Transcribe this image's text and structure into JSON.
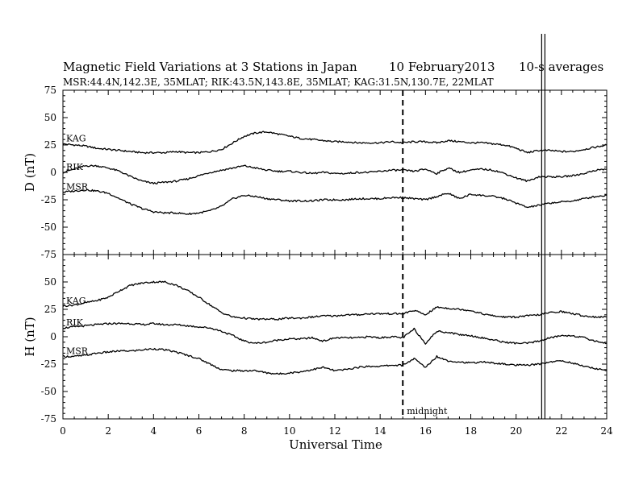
{
  "header": {
    "title": "Magnetic Field Variations at 3 Stations in Japan",
    "date": "10 February2013",
    "averaging": "10-s averages",
    "stations_line": "MSR:44.4N,142.3E, 35MLAT;  RIK:43.5N,143.8E, 35MLAT;  KAG:31.5N,130.7E, 22MLAT"
  },
  "colors": {
    "trace": "#000000",
    "axis": "#000000",
    "background": "#ffffff"
  },
  "chart_data": [
    {
      "type": "line",
      "panel": "D",
      "ylabel": "D (nT)",
      "xlabel": "Universal Time",
      "xlim": [
        0,
        24
      ],
      "ylim": [
        -75,
        75
      ],
      "xticks": [
        0,
        2,
        4,
        6,
        8,
        10,
        12,
        14,
        16,
        18,
        20,
        22,
        24
      ],
      "yticks": [
        75,
        50,
        25,
        0,
        -25,
        -50,
        -75
      ],
      "annotation": "midnight",
      "midnight_x": 15,
      "marker_x": 21.2,
      "grid": false,
      "x": [
        0,
        0.5,
        1,
        1.5,
        2,
        2.5,
        3,
        3.5,
        4,
        4.5,
        5,
        5.5,
        6,
        6.5,
        7,
        7.5,
        8,
        8.5,
        9,
        9.5,
        10,
        10.5,
        11,
        11.5,
        12,
        12.5,
        13,
        13.5,
        14,
        14.5,
        15,
        15.5,
        16,
        16.5,
        17,
        17.5,
        18,
        18.5,
        19,
        19.5,
        20,
        20.5,
        21,
        21.5,
        22,
        22.5,
        23,
        23.5,
        24
      ],
      "series": [
        {
          "name": "KAG",
          "values": [
            26,
            25,
            24,
            22,
            21,
            20,
            19,
            18,
            18,
            18,
            19,
            18,
            18,
            19,
            21,
            27,
            33,
            36,
            37,
            35,
            33,
            31,
            30,
            29,
            28,
            28,
            27,
            27,
            27,
            28,
            27,
            28,
            28,
            27,
            29,
            28,
            27,
            27,
            26,
            25,
            22,
            18,
            20,
            20,
            19,
            19,
            21,
            23,
            25
          ]
        },
        {
          "name": "RIK",
          "values": [
            0,
            3,
            6,
            6,
            4,
            1,
            -4,
            -8,
            -10,
            -9,
            -8,
            -6,
            -3,
            0,
            2,
            4,
            6,
            4,
            2,
            1,
            1,
            0,
            -1,
            0,
            -1,
            -1,
            0,
            0,
            1,
            2,
            2,
            1,
            3,
            -1,
            4,
            0,
            2,
            3,
            2,
            -1,
            -5,
            -8,
            -4,
            -4,
            -4,
            -3,
            -1,
            2,
            3
          ]
        },
        {
          "name": "MSR",
          "values": [
            -18,
            -17,
            -16,
            -17,
            -19,
            -24,
            -29,
            -33,
            -36,
            -37,
            -37,
            -38,
            -37,
            -35,
            -31,
            -24,
            -21,
            -22,
            -24,
            -25,
            -26,
            -26,
            -26,
            -25,
            -25,
            -25,
            -24,
            -24,
            -24,
            -23,
            -23,
            -24,
            -25,
            -22,
            -19,
            -24,
            -20,
            -21,
            -22,
            -24,
            -28,
            -32,
            -30,
            -28,
            -27,
            -26,
            -24,
            -22,
            -21
          ]
        }
      ]
    },
    {
      "type": "line",
      "panel": "H",
      "ylabel": "H (nT)",
      "xlabel": "Universal Time",
      "xlim": [
        0,
        24
      ],
      "ylim": [
        -75,
        75
      ],
      "xticks": [
        0,
        2,
        4,
        6,
        8,
        10,
        12,
        14,
        16,
        18,
        20,
        22,
        24
      ],
      "yticks": [
        50,
        25,
        0,
        -25,
        -50,
        -75
      ],
      "annotation": "midnight",
      "midnight_x": 15,
      "marker_x": 21.2,
      "grid": false,
      "x": [
        0,
        0.5,
        1,
        1.5,
        2,
        2.5,
        3,
        3.5,
        4,
        4.5,
        5,
        5.5,
        6,
        6.5,
        7,
        7.5,
        8,
        8.5,
        9,
        9.5,
        10,
        10.5,
        11,
        11.5,
        12,
        12.5,
        13,
        13.5,
        14,
        14.5,
        15,
        15.5,
        16,
        16.5,
        17,
        17.5,
        18,
        18.5,
        19,
        19.5,
        20,
        20.5,
        21,
        21.5,
        22,
        22.5,
        23,
        23.5,
        24
      ],
      "series": [
        {
          "name": "KAG",
          "values": [
            28,
            29,
            31,
            33,
            36,
            42,
            47,
            49,
            50,
            50,
            47,
            42,
            36,
            29,
            22,
            18,
            17,
            16,
            16,
            16,
            17,
            17,
            18,
            19,
            19,
            20,
            20,
            21,
            21,
            21,
            21,
            24,
            20,
            27,
            26,
            25,
            24,
            21,
            19,
            18,
            18,
            19,
            20,
            22,
            23,
            21,
            19,
            18,
            18
          ]
        },
        {
          "name": "RIK",
          "values": [
            8,
            9,
            10,
            11,
            12,
            12,
            12,
            11,
            12,
            11,
            11,
            10,
            9,
            8,
            5,
            1,
            -4,
            -6,
            -5,
            -3,
            -2,
            -2,
            -1,
            -4,
            -1,
            -1,
            -1,
            0,
            -1,
            0,
            -1,
            7,
            -6,
            5,
            4,
            2,
            1,
            -1,
            -3,
            -5,
            -6,
            -6,
            -4,
            -1,
            1,
            1,
            -1,
            -4,
            -6
          ]
        },
        {
          "name": "MSR",
          "values": [
            -18,
            -18,
            -17,
            -15,
            -14,
            -13,
            -13,
            -12,
            -11,
            -12,
            -14,
            -17,
            -20,
            -25,
            -30,
            -31,
            -31,
            -31,
            -33,
            -34,
            -33,
            -32,
            -30,
            -28,
            -31,
            -30,
            -28,
            -27,
            -27,
            -26,
            -26,
            -20,
            -28,
            -18,
            -22,
            -23,
            -24,
            -23,
            -24,
            -25,
            -26,
            -26,
            -25,
            -23,
            -22,
            -24,
            -27,
            -29,
            -31
          ]
        }
      ]
    }
  ]
}
